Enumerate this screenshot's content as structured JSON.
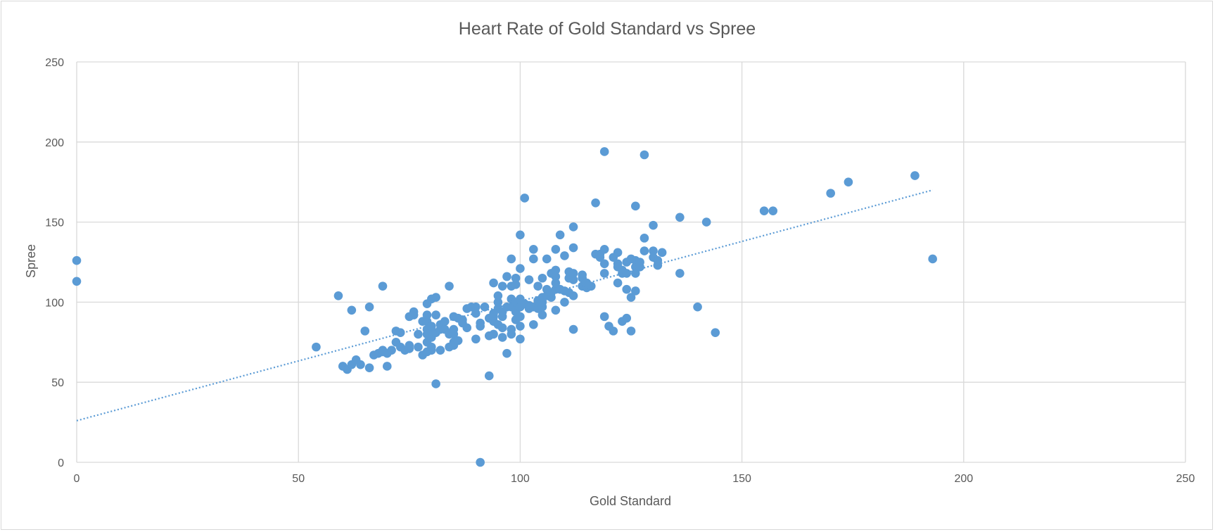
{
  "chart_data": {
    "type": "scatter",
    "title": "Heart Rate of Gold Standard vs Spree",
    "xlabel": "Gold Standard",
    "ylabel": "Spree",
    "xlim": [
      0,
      250
    ],
    "ylim": [
      0,
      250
    ],
    "x_ticks": [
      "0",
      "50",
      "100",
      "150",
      "200",
      "250"
    ],
    "y_ticks": [
      "0",
      "50",
      "100",
      "150",
      "200",
      "250"
    ],
    "grid": true,
    "legend": "none",
    "colors": {
      "marker": "#5b9bd5",
      "trendline": "#5b9bd5",
      "grid": "#d9d9d9"
    },
    "trendline": {
      "type": "linear",
      "x": [
        0,
        193
      ],
      "y": [
        26,
        170
      ]
    },
    "series": [
      {
        "points": [
          [
            0,
            126
          ],
          [
            0,
            113
          ],
          [
            54,
            72
          ],
          [
            59,
            104
          ],
          [
            60,
            60
          ],
          [
            61,
            58
          ],
          [
            62,
            61
          ],
          [
            62,
            95
          ],
          [
            63,
            64
          ],
          [
            64,
            61
          ],
          [
            65,
            82
          ],
          [
            66,
            59
          ],
          [
            66,
            97
          ],
          [
            67,
            67
          ],
          [
            68,
            68
          ],
          [
            69,
            69
          ],
          [
            69,
            70
          ],
          [
            69,
            110
          ],
          [
            70,
            68
          ],
          [
            70,
            60
          ],
          [
            71,
            70
          ],
          [
            72,
            75
          ],
          [
            72,
            82
          ],
          [
            73,
            72
          ],
          [
            73,
            81
          ],
          [
            74,
            70
          ],
          [
            75,
            71
          ],
          [
            75,
            73
          ],
          [
            75,
            91
          ],
          [
            76,
            92
          ],
          [
            76,
            94
          ],
          [
            77,
            72
          ],
          [
            77,
            80
          ],
          [
            78,
            67
          ],
          [
            78,
            88
          ],
          [
            79,
            69
          ],
          [
            79,
            75
          ],
          [
            79,
            80
          ],
          [
            79,
            83
          ],
          [
            79,
            88
          ],
          [
            79,
            92
          ],
          [
            79,
            99
          ],
          [
            80,
            70
          ],
          [
            80,
            72
          ],
          [
            80,
            78
          ],
          [
            80,
            82
          ],
          [
            80,
            85
          ],
          [
            80,
            102
          ],
          [
            81,
            103
          ],
          [
            81,
            49
          ],
          [
            81,
            81
          ],
          [
            81,
            92
          ],
          [
            82,
            70
          ],
          [
            82,
            83
          ],
          [
            82,
            86
          ],
          [
            83,
            83
          ],
          [
            83,
            88
          ],
          [
            84,
            72
          ],
          [
            84,
            80
          ],
          [
            84,
            110
          ],
          [
            85,
            73
          ],
          [
            85,
            75
          ],
          [
            85,
            80
          ],
          [
            85,
            83
          ],
          [
            85,
            91
          ],
          [
            86,
            76
          ],
          [
            86,
            90
          ],
          [
            87,
            87
          ],
          [
            87,
            89
          ],
          [
            88,
            84
          ],
          [
            88,
            96
          ],
          [
            89,
            97
          ],
          [
            90,
            77
          ],
          [
            90,
            93
          ],
          [
            90,
            97
          ],
          [
            91,
            85
          ],
          [
            91,
            87
          ],
          [
            91,
            0
          ],
          [
            92,
            97
          ],
          [
            93,
            54
          ],
          [
            93,
            79
          ],
          [
            93,
            90
          ],
          [
            94,
            80
          ],
          [
            94,
            88
          ],
          [
            94,
            91
          ],
          [
            94,
            93
          ],
          [
            94,
            112
          ],
          [
            95,
            86
          ],
          [
            95,
            96
          ],
          [
            95,
            100
          ],
          [
            95,
            104
          ],
          [
            96,
            78
          ],
          [
            96,
            84
          ],
          [
            96,
            91
          ],
          [
            96,
            94
          ],
          [
            96,
            110
          ],
          [
            97,
            68
          ],
          [
            97,
            97
          ],
          [
            97,
            116
          ],
          [
            98,
            80
          ],
          [
            98,
            83
          ],
          [
            98,
            97
          ],
          [
            98,
            102
          ],
          [
            98,
            110
          ],
          [
            98,
            127
          ],
          [
            99,
            89
          ],
          [
            99,
            94
          ],
          [
            99,
            95
          ],
          [
            99,
            100
          ],
          [
            99,
            111
          ],
          [
            99,
            115
          ],
          [
            100,
            77
          ],
          [
            100,
            85
          ],
          [
            100,
            91
          ],
          [
            100,
            97
          ],
          [
            100,
            102
          ],
          [
            100,
            121
          ],
          [
            100,
            142
          ],
          [
            101,
            99
          ],
          [
            101,
            165
          ],
          [
            102,
            96
          ],
          [
            102,
            98
          ],
          [
            102,
            114
          ],
          [
            103,
            86
          ],
          [
            103,
            97
          ],
          [
            103,
            127
          ],
          [
            103,
            133
          ],
          [
            104,
            96
          ],
          [
            104,
            101
          ],
          [
            104,
            110
          ],
          [
            105,
            92
          ],
          [
            105,
            97
          ],
          [
            105,
            100
          ],
          [
            105,
            103
          ],
          [
            105,
            115
          ],
          [
            106,
            104
          ],
          [
            106,
            108
          ],
          [
            106,
            127
          ],
          [
            107,
            103
          ],
          [
            107,
            106
          ],
          [
            107,
            118
          ],
          [
            108,
            95
          ],
          [
            108,
            108
          ],
          [
            108,
            112
          ],
          [
            108,
            116
          ],
          [
            108,
            120
          ],
          [
            108,
            133
          ],
          [
            109,
            108
          ],
          [
            109,
            142
          ],
          [
            110,
            100
          ],
          [
            110,
            107
          ],
          [
            110,
            129
          ],
          [
            111,
            106
          ],
          [
            111,
            115
          ],
          [
            111,
            119
          ],
          [
            112,
            83
          ],
          [
            112,
            104
          ],
          [
            112,
            114
          ],
          [
            112,
            118
          ],
          [
            112,
            134
          ],
          [
            112,
            147
          ],
          [
            114,
            110
          ],
          [
            114,
            115
          ],
          [
            114,
            117
          ],
          [
            115,
            109
          ],
          [
            115,
            112
          ],
          [
            116,
            110
          ],
          [
            117,
            130
          ],
          [
            117,
            162
          ],
          [
            118,
            128
          ],
          [
            118,
            130
          ],
          [
            119,
            91
          ],
          [
            119,
            118
          ],
          [
            119,
            124
          ],
          [
            119,
            133
          ],
          [
            119,
            194
          ],
          [
            120,
            85
          ],
          [
            121,
            82
          ],
          [
            121,
            128
          ],
          [
            122,
            112
          ],
          [
            122,
            122
          ],
          [
            122,
            124
          ],
          [
            122,
            131
          ],
          [
            123,
            88
          ],
          [
            123,
            118
          ],
          [
            123,
            120
          ],
          [
            124,
            90
          ],
          [
            124,
            108
          ],
          [
            124,
            118
          ],
          [
            124,
            125
          ],
          [
            125,
            82
          ],
          [
            125,
            103
          ],
          [
            125,
            127
          ],
          [
            126,
            107
          ],
          [
            126,
            118
          ],
          [
            126,
            122
          ],
          [
            126,
            126
          ],
          [
            126,
            160
          ],
          [
            127,
            122
          ],
          [
            127,
            125
          ],
          [
            128,
            132
          ],
          [
            128,
            140
          ],
          [
            128,
            192
          ],
          [
            130,
            128
          ],
          [
            130,
            132
          ],
          [
            130,
            148
          ],
          [
            131,
            123
          ],
          [
            131,
            126
          ],
          [
            132,
            131
          ],
          [
            136,
            118
          ],
          [
            136,
            153
          ],
          [
            140,
            97
          ],
          [
            142,
            150
          ],
          [
            144,
            81
          ],
          [
            155,
            157
          ],
          [
            157,
            157
          ],
          [
            170,
            168
          ],
          [
            174,
            175
          ],
          [
            189,
            179
          ],
          [
            193,
            127
          ]
        ]
      }
    ]
  }
}
